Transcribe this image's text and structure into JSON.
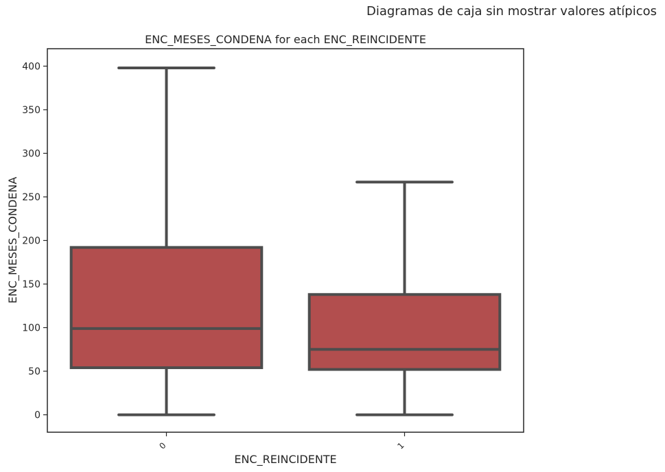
{
  "suptitle": "Diagramas de caja sin mostrar valores atípicos",
  "chart_data": {
    "type": "box",
    "title": "ENC_MESES_CONDENA for each ENC_REINCIDENTE",
    "xlabel": "ENC_REINCIDENTE",
    "ylabel": "ENC_MESES_CONDENA",
    "ylim": [
      -20,
      420
    ],
    "yticks": [
      0,
      50,
      100,
      150,
      200,
      250,
      300,
      350,
      400
    ],
    "categories": [
      "0",
      "1"
    ],
    "boxes": [
      {
        "category": "0",
        "whisker_low": 0,
        "q1": 54,
        "median": 99,
        "q3": 192,
        "whisker_high": 398
      },
      {
        "category": "1",
        "whisker_low": 0,
        "q1": 52,
        "median": 75,
        "q3": 138,
        "whisker_high": 267
      }
    ],
    "showfliers": false,
    "grid": false,
    "colors": {
      "box_fill": "#b24e4e",
      "line": "#4d4d4d",
      "axes": "#262626"
    }
  }
}
